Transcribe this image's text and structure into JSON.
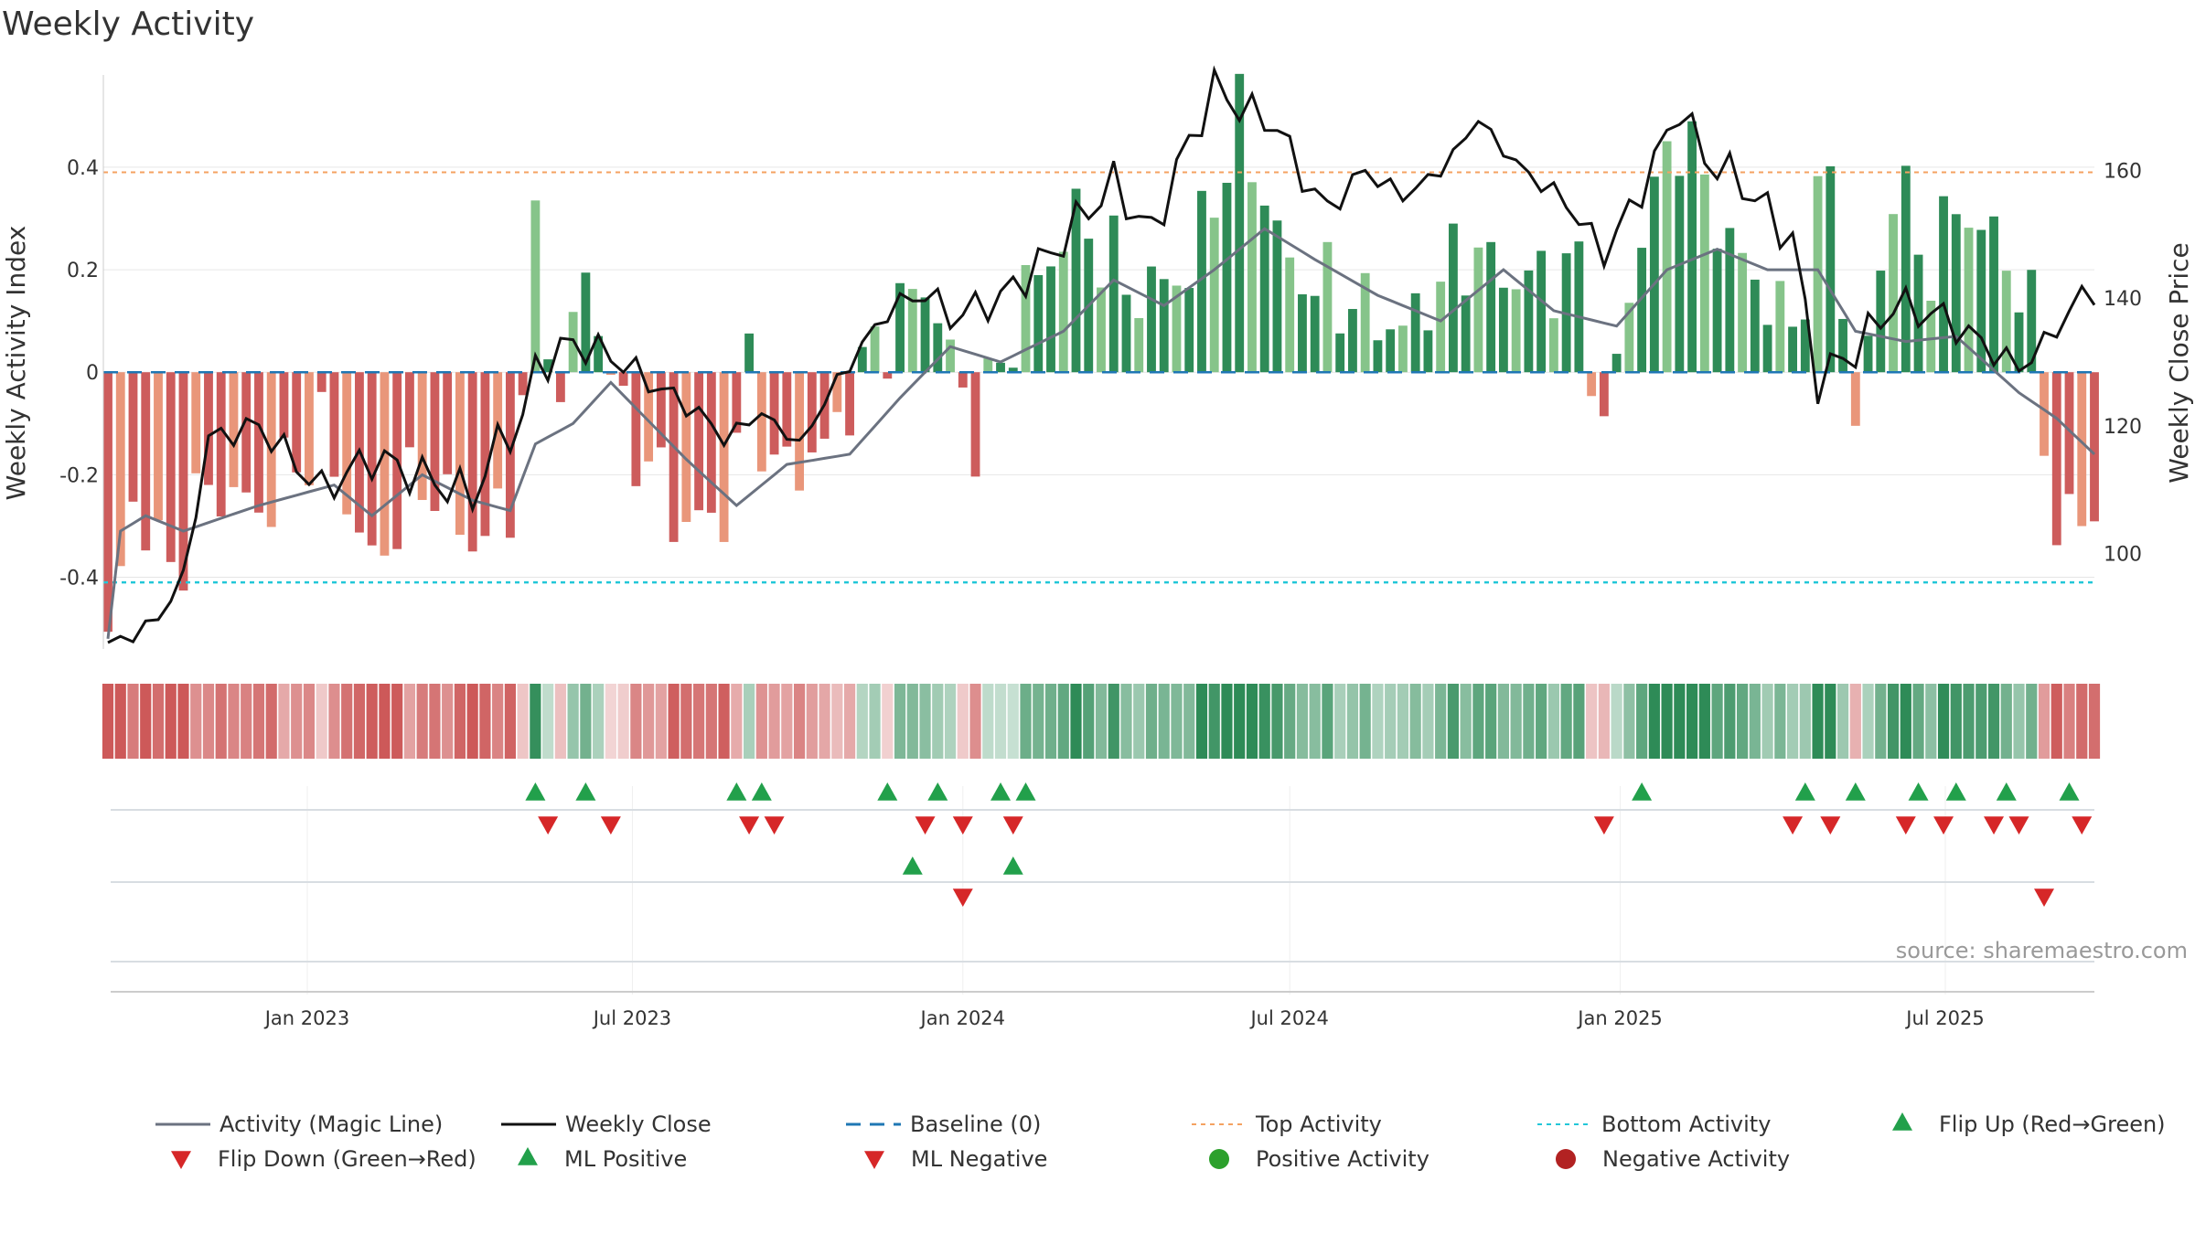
{
  "title": "Weekly Activity",
  "source": "source: sharemaestro.com",
  "colors": {
    "pos_dark": "#2e8b57",
    "pos_light": "#86c48a",
    "neg_dark": "#cd5c5c",
    "neg_light": "#e9967a",
    "magic": "#6b7280",
    "close": "#111111",
    "baseline": "#1f77b4",
    "top": "#f4a261",
    "bottom": "#22c7d8",
    "flip_up": "#22a04b",
    "flip_down": "#d62728",
    "pos_dot": "#2ca02c",
    "neg_dot": "#b22222"
  },
  "chart_data": {
    "type": "bar",
    "title": "Weekly Activity",
    "ylabel": "Weekly Activity Index",
    "y2label": "Weekly Close Price",
    "ylim": [
      -0.54,
      0.58
    ],
    "y2lim": [
      85,
      175
    ],
    "yticks": [
      -0.4,
      -0.2,
      0,
      0.2,
      0.4
    ],
    "ytick_labels": [
      "-0.4",
      "-0.2",
      "0",
      "0.2",
      "0.4"
    ],
    "y2ticks": [
      100,
      120,
      140,
      160
    ],
    "y2tick_labels": [
      "100",
      "120",
      "140",
      "160"
    ],
    "x_range": [
      "2022-09-12",
      "2025-09-22"
    ],
    "xticks": [
      "2023-01-01",
      "2023-07-01",
      "2024-01-01",
      "2024-07-01",
      "2025-01-01",
      "2025-07-01"
    ],
    "xtick_labels": [
      "Jan 2023",
      "Jul 2023",
      "Jan 2024",
      "Jul 2024",
      "Jan 2025",
      "Jul 2025"
    ],
    "top_activity": 0.39,
    "bottom_activity": -0.41,
    "baseline": 0,
    "grid": true,
    "legend_position": "bottom",
    "legend": [
      "Activity (Magic Line)",
      "Weekly Close",
      "Baseline (0)",
      "Top Activity",
      "Bottom Activity",
      "Flip Up (Red→Green)",
      "Flip Down (Green→Red)",
      "ML Positive",
      "ML Negative",
      "Positive Activity",
      "Negative Activity"
    ],
    "activity_anchors": [
      [
        "2022-09-12",
        -0.54
      ],
      [
        "2022-09-26",
        -0.25
      ],
      [
        "2022-10-17",
        -0.39
      ],
      [
        "2022-11-07",
        -0.22
      ],
      [
        "2022-12-05",
        -0.27
      ],
      [
        "2023-01-09",
        -0.12
      ],
      [
        "2023-02-06",
        -0.38
      ],
      [
        "2023-03-06",
        -0.2
      ],
      [
        "2023-04-03",
        -0.33
      ],
      [
        "2023-04-24",
        -0.27
      ],
      [
        "2023-05-08",
        0.24
      ],
      [
        "2023-05-22",
        -0.05
      ],
      [
        "2023-06-05",
        0.2
      ],
      [
        "2023-06-26",
        -0.1
      ],
      [
        "2023-07-31",
        -0.3
      ],
      [
        "2023-08-21",
        -0.28
      ],
      [
        "2023-09-04",
        0.01
      ],
      [
        "2023-09-18",
        -0.2
      ],
      [
        "2023-10-16",
        -0.15
      ],
      [
        "2023-11-13",
        0.05
      ],
      [
        "2023-12-11",
        0.18
      ],
      [
        "2024-01-08",
        -0.12
      ],
      [
        "2024-02-05",
        0.15
      ],
      [
        "2024-03-04",
        0.3
      ],
      [
        "2024-04-08",
        0.15
      ],
      [
        "2024-05-06",
        0.2
      ],
      [
        "2024-06-03",
        0.49
      ],
      [
        "2024-07-01",
        0.2
      ],
      [
        "2024-07-29",
        0.15
      ],
      [
        "2024-09-02",
        0.08
      ],
      [
        "2024-10-07",
        0.24
      ],
      [
        "2024-11-04",
        0.18
      ],
      [
        "2024-12-09",
        0.2
      ],
      [
        "2024-12-23",
        -0.12
      ],
      [
        "2025-01-13",
        0.28
      ],
      [
        "2025-02-03",
        0.48
      ],
      [
        "2025-03-03",
        0.25
      ],
      [
        "2025-04-07",
        0.08
      ],
      [
        "2025-04-28",
        0.41
      ],
      [
        "2025-05-12",
        -0.12
      ],
      [
        "2025-06-02",
        0.37
      ],
      [
        "2025-06-23",
        0.2
      ],
      [
        "2025-07-07",
        0.33
      ],
      [
        "2025-08-04",
        0.23
      ],
      [
        "2025-08-18",
        0.1
      ],
      [
        "2025-09-01",
        -0.31
      ],
      [
        "2025-09-22",
        -0.27
      ]
    ],
    "magic_line": [
      [
        "2022-09-12",
        -0.52
      ],
      [
        "2022-09-19",
        -0.31
      ],
      [
        "2022-10-03",
        -0.28
      ],
      [
        "2022-10-24",
        -0.31
      ],
      [
        "2022-12-05",
        -0.26
      ],
      [
        "2023-01-16",
        -0.22
      ],
      [
        "2023-02-06",
        -0.28
      ],
      [
        "2023-03-06",
        -0.2
      ],
      [
        "2023-04-03",
        -0.25
      ],
      [
        "2023-04-24",
        -0.27
      ],
      [
        "2023-05-08",
        -0.14
      ],
      [
        "2023-05-29",
        -0.1
      ],
      [
        "2023-06-19",
        -0.02
      ],
      [
        "2023-07-31",
        -0.17
      ],
      [
        "2023-08-28",
        -0.26
      ],
      [
        "2023-09-25",
        -0.18
      ],
      [
        "2023-10-30",
        -0.16
      ],
      [
        "2023-11-27",
        -0.05
      ],
      [
        "2023-12-25",
        0.05
      ],
      [
        "2024-01-22",
        0.02
      ],
      [
        "2024-02-26",
        0.08
      ],
      [
        "2024-03-25",
        0.18
      ],
      [
        "2024-04-22",
        0.13
      ],
      [
        "2024-05-20",
        0.2
      ],
      [
        "2024-06-17",
        0.28
      ],
      [
        "2024-07-15",
        0.22
      ],
      [
        "2024-08-19",
        0.15
      ],
      [
        "2024-09-23",
        0.1
      ],
      [
        "2024-10-28",
        0.2
      ],
      [
        "2024-11-25",
        0.12
      ],
      [
        "2024-12-30",
        0.09
      ],
      [
        "2025-01-27",
        0.2
      ],
      [
        "2025-02-24",
        0.24
      ],
      [
        "2025-03-24",
        0.2
      ],
      [
        "2025-04-21",
        0.2
      ],
      [
        "2025-05-12",
        0.08
      ],
      [
        "2025-06-09",
        0.06
      ],
      [
        "2025-07-07",
        0.07
      ],
      [
        "2025-08-11",
        -0.04
      ],
      [
        "2025-09-01",
        -0.09
      ],
      [
        "2025-09-22",
        -0.16
      ]
    ],
    "weekly_close": [
      [
        "2022-09-12",
        86
      ],
      [
        "2022-09-26",
        87
      ],
      [
        "2022-10-10",
        90
      ],
      [
        "2022-10-24",
        96
      ],
      [
        "2022-11-07",
        118
      ],
      [
        "2022-12-05",
        120
      ],
      [
        "2023-01-09",
        110
      ],
      [
        "2023-02-06",
        115
      ],
      [
        "2023-03-06",
        112
      ],
      [
        "2023-04-03",
        109
      ],
      [
        "2023-04-17",
        117
      ],
      [
        "2023-05-01",
        121
      ],
      [
        "2023-05-08",
        129
      ],
      [
        "2023-05-29",
        133
      ],
      [
        "2023-06-19",
        131
      ],
      [
        "2023-07-10",
        127
      ],
      [
        "2023-08-07",
        122
      ],
      [
        "2023-08-21",
        118
      ],
      [
        "2023-09-11",
        122
      ],
      [
        "2023-10-02",
        117
      ],
      [
        "2023-10-23",
        127
      ],
      [
        "2023-11-20",
        138
      ],
      [
        "2023-12-11",
        141
      ],
      [
        "2023-12-25",
        137
      ],
      [
        "2024-01-22",
        140
      ],
      [
        "2024-02-19",
        147
      ],
      [
        "2024-03-11",
        154
      ],
      [
        "2024-03-25",
        158
      ],
      [
        "2024-04-15",
        150
      ],
      [
        "2024-04-29",
        160
      ],
      [
        "2024-05-20",
        173
      ],
      [
        "2024-06-03",
        170
      ],
      [
        "2024-06-24",
        167
      ],
      [
        "2024-07-08",
        159
      ],
      [
        "2024-07-22",
        154
      ],
      [
        "2024-08-12",
        160
      ],
      [
        "2024-09-02",
        156
      ],
      [
        "2024-09-23",
        160
      ],
      [
        "2024-10-14",
        168
      ],
      [
        "2024-11-04",
        161
      ],
      [
        "2024-12-02",
        155
      ],
      [
        "2024-12-23",
        147
      ],
      [
        "2025-01-13",
        157
      ],
      [
        "2025-02-03",
        170
      ],
      [
        "2025-02-17",
        162
      ],
      [
        "2025-03-10",
        158
      ],
      [
        "2025-04-07",
        149
      ],
      [
        "2025-04-21",
        127
      ],
      [
        "2025-05-12",
        132
      ],
      [
        "2025-06-02",
        139
      ],
      [
        "2025-06-30",
        137
      ],
      [
        "2025-07-21",
        133
      ],
      [
        "2025-08-11",
        129
      ],
      [
        "2025-09-01",
        135
      ],
      [
        "2025-09-15",
        141
      ],
      [
        "2025-09-22",
        140
      ]
    ],
    "flip_up": [
      "2023-05-08",
      "2023-06-05",
      "2023-08-28",
      "2023-09-11",
      "2023-11-20",
      "2023-12-18",
      "2024-01-22",
      "2024-02-05",
      "2025-01-13",
      "2025-04-14",
      "2025-05-12",
      "2025-06-16",
      "2025-07-07",
      "2025-08-04",
      "2025-09-08"
    ],
    "flip_down": [
      "2023-05-15",
      "2023-06-19",
      "2023-09-04",
      "2023-09-18",
      "2023-12-11",
      "2024-01-01",
      "2024-01-29",
      "2024-12-23",
      "2025-04-07",
      "2025-04-28",
      "2025-06-09",
      "2025-06-30",
      "2025-07-28",
      "2025-08-11",
      "2025-09-15"
    ],
    "ml_positive": [
      "2023-12-04",
      "2024-01-29"
    ],
    "ml_negative": [
      "2024-01-01",
      "2025-08-25"
    ],
    "series": [
      {
        "name": "Activity (Magic Line)"
      },
      {
        "name": "Weekly Close"
      },
      {
        "name": "Baseline (0)"
      },
      {
        "name": "Top Activity"
      },
      {
        "name": "Bottom Activity"
      },
      {
        "name": "Flip Up (Red→Green)"
      },
      {
        "name": "Flip Down (Green→Red)"
      },
      {
        "name": "ML Positive"
      },
      {
        "name": "ML Negative"
      },
      {
        "name": "Positive Activity"
      },
      {
        "name": "Negative Activity"
      }
    ]
  }
}
